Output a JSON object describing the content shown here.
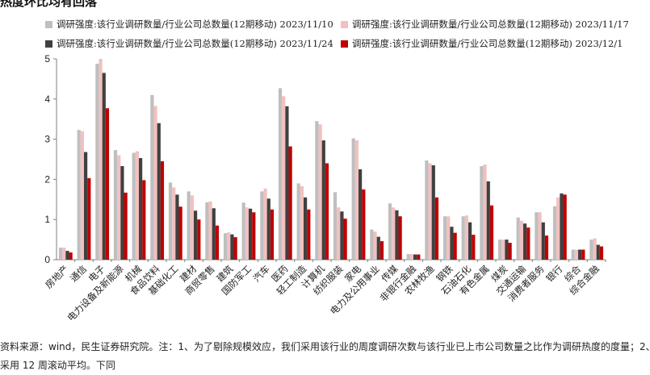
{
  "title": "热度环比均有回落",
  "footnote": [
    "资料来源：wind，民生证券研究院。注：1、为了剔除规模效应，我们采用该行业的周度调研次数与该行业已上市公司数量之比作为调研热度的度量；2、",
    "采用 12 周滚动平均。下同"
  ],
  "colors": {
    "s1": "#bfbfbf",
    "s2": "#f2c0c0",
    "s3": "#404040",
    "s4": "#c00000"
  },
  "chart_data": {
    "type": "bar",
    "title": "热度环比均有回落",
    "xlabel": "",
    "ylabel": "",
    "ylim": [
      0,
      5
    ],
    "yticks": [
      0,
      1,
      2,
      3,
      4,
      5
    ],
    "grid": false,
    "legend": "top",
    "categories": [
      "房地产",
      "通信",
      "电子",
      "电力设备及新能源",
      "机械",
      "食品饮料",
      "基础化工",
      "建材",
      "商贸零售",
      "建筑",
      "国防军工",
      "汽车",
      "医药",
      "轻工制造",
      "计算机",
      "纺织服装",
      "家电",
      "电力及公用事业",
      "传媒",
      "非银行金融",
      "农林牧渔",
      "钢铁",
      "石油石化",
      "有色金属",
      "煤炭",
      "交通运输",
      "消费者服务",
      "银行",
      "综合",
      "综合金融"
    ],
    "series": [
      {
        "name": "调研强度:该行业调研数量/行业公司总数量(12期移动) 2023/11/10",
        "values": [
          0.3,
          3.23,
          4.88,
          2.73,
          2.66,
          4.1,
          1.92,
          1.7,
          1.43,
          0.66,
          1.42,
          1.7,
          4.27,
          1.9,
          3.45,
          1.68,
          3.02,
          0.75,
          1.4,
          0.14,
          2.47,
          1.08,
          1.08,
          2.33,
          0.5,
          1.05,
          1.18,
          1.33,
          0.25,
          0.5
        ]
      },
      {
        "name": "调研强度:该行业调研数量/行业公司总数量(12期移动) 2023/11/17",
        "values": [
          0.3,
          3.2,
          5.0,
          2.6,
          2.7,
          3.83,
          1.8,
          1.6,
          1.45,
          0.68,
          1.3,
          1.77,
          4.07,
          1.83,
          3.37,
          1.3,
          2.97,
          0.7,
          1.3,
          0.14,
          2.4,
          1.08,
          1.1,
          2.37,
          0.5,
          0.97,
          1.18,
          1.55,
          0.25,
          0.53
        ]
      },
      {
        "name": "调研强度:该行业调研数量/行业公司总数量(12期移动) 2023/11/24",
        "values": [
          0.22,
          2.68,
          4.65,
          2.33,
          2.53,
          3.4,
          1.62,
          1.22,
          1.28,
          0.63,
          1.27,
          1.52,
          3.82,
          1.55,
          2.97,
          1.2,
          2.25,
          0.57,
          1.23,
          0.13,
          2.35,
          0.82,
          0.93,
          1.95,
          0.5,
          0.9,
          0.93,
          1.65,
          0.25,
          0.37
        ]
      },
      {
        "name": "调研强度:该行业调研数量/行业公司总数量(12期移动) 2023/12/1",
        "values": [
          0.18,
          2.03,
          3.77,
          1.67,
          1.98,
          2.45,
          1.32,
          1.0,
          0.85,
          0.56,
          1.18,
          1.25,
          2.82,
          1.25,
          2.4,
          1.02,
          1.75,
          0.46,
          1.08,
          0.13,
          1.55,
          0.67,
          0.62,
          1.35,
          0.42,
          0.8,
          0.6,
          1.62,
          0.25,
          0.33
        ]
      }
    ]
  }
}
